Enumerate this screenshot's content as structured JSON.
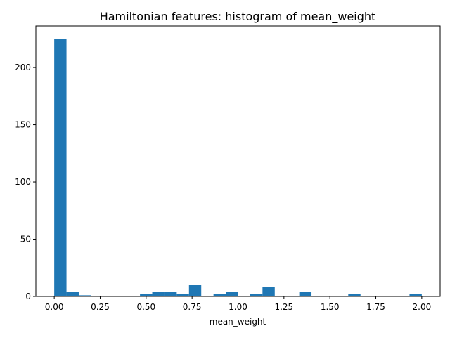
{
  "chart_data": {
    "type": "bar",
    "title": "Hamiltonian features: histogram of mean_weight",
    "xlabel": "mean_weight",
    "ylabel": "",
    "xlim": [
      -0.1,
      2.1
    ],
    "ylim": [
      0,
      236.25
    ],
    "grid": false,
    "bar_color": "#1f77b4",
    "x_ticks": [
      0.0,
      0.25,
      0.5,
      0.75,
      1.0,
      1.25,
      1.5,
      1.75,
      2.0
    ],
    "x_tick_labels": [
      "0.00",
      "0.25",
      "0.50",
      "0.75",
      "1.00",
      "1.25",
      "1.50",
      "1.75",
      "2.00"
    ],
    "y_ticks": [
      0,
      50,
      100,
      150,
      200
    ],
    "y_tick_labels": [
      "0",
      "50",
      "100",
      "150",
      "200"
    ],
    "bins": {
      "start": 0.0,
      "end": 2.0,
      "count": 30
    },
    "values": [
      225,
      4,
      1,
      0,
      0,
      0,
      0,
      2,
      4,
      4,
      2,
      10,
      0,
      2,
      4,
      0,
      2,
      8,
      0,
      0,
      4,
      0,
      0,
      0,
      2,
      0,
      0,
      0,
      0,
      2
    ]
  }
}
